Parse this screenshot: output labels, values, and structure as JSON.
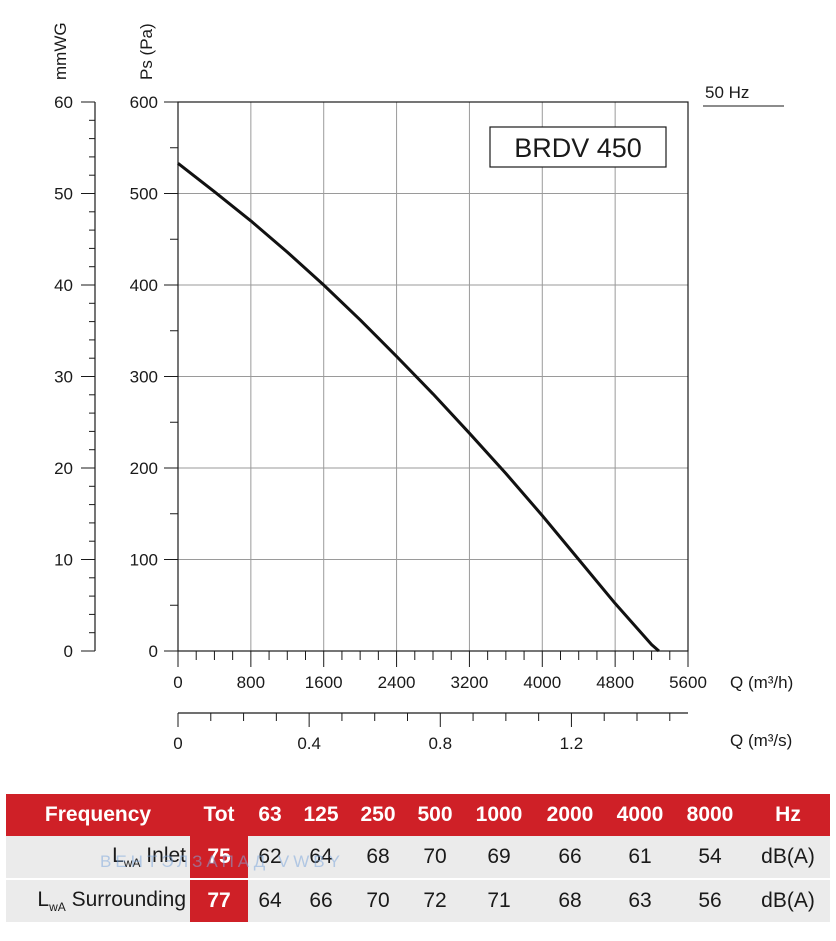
{
  "chart_data": {
    "type": "line",
    "model_label": "BRDV 450",
    "frequency_label": "50 Hz",
    "ylabel": "Ps (Pa)",
    "ylabel_secondary": "mmWG",
    "xlabel": "Q (m³/h)",
    "xlabel_secondary": "Q (m³/s)",
    "xlim": [
      0,
      5600
    ],
    "ylim": [
      0,
      600
    ],
    "x_ticks": [
      "0",
      "800",
      "1600",
      "2400",
      "3200",
      "4000",
      "4800",
      "5600"
    ],
    "y_ticks": [
      "0",
      "100",
      "200",
      "300",
      "400",
      "500",
      "600"
    ],
    "y_secondary_ticks": [
      "0",
      "10",
      "20",
      "30",
      "40",
      "50",
      "60"
    ],
    "x_secondary_ticks": [
      "0",
      "0.4",
      "0.8",
      "1.2"
    ],
    "x_secondary_values": [
      0,
      0.4,
      0.8,
      1.2
    ],
    "grid": true,
    "series": [
      {
        "x": [
          0,
          400,
          800,
          1200,
          1600,
          2000,
          2400,
          2800,
          3200,
          3600,
          4000,
          4400,
          4800,
          5200,
          5280
        ],
        "y": [
          533,
          502,
          470,
          436,
          400,
          362,
          322,
          281,
          238,
          194,
          148,
          100,
          52,
          7,
          0
        ]
      }
    ]
  },
  "noise_table": {
    "header": [
      "Frequency",
      "Tot",
      "63",
      "125",
      "250",
      "500",
      "1000",
      "2000",
      "4000",
      "8000",
      "Hz"
    ],
    "rows": [
      {
        "label_main": "L",
        "label_sub": "wA",
        "label_rest": " Inlet",
        "values": [
          "75",
          "62",
          "64",
          "68",
          "70",
          "69",
          "66",
          "61",
          "54"
        ],
        "unit": "dB(A)"
      },
      {
        "label_main": "L",
        "label_sub": "wA",
        "label_rest": " Surrounding",
        "values": [
          "77",
          "64",
          "66",
          "70",
          "72",
          "71",
          "68",
          "63",
          "56"
        ],
        "unit": "dB(A)"
      }
    ]
  },
  "watermark": "ВЕНТЭЛЗАПАД    VWBY"
}
